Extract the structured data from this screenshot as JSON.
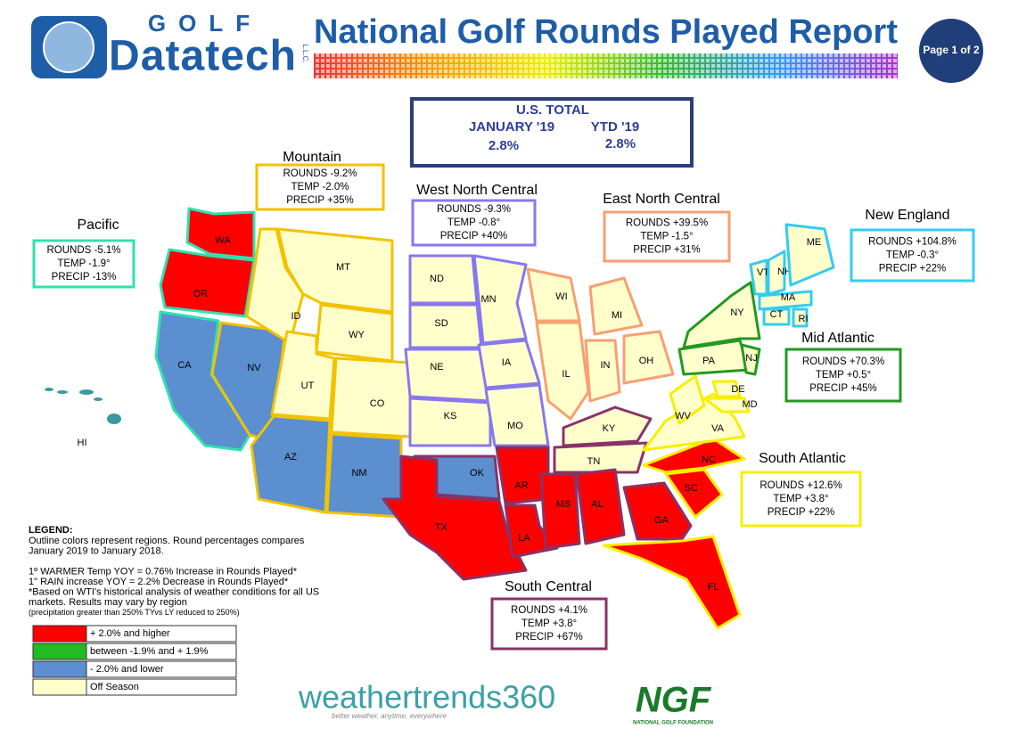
{
  "header": {
    "logo_top": "GOLF",
    "logo_main": "Datatech",
    "logo_side": "L.L.C.",
    "title": "National Golf Rounds Played Report",
    "page": "Page 1 of 2"
  },
  "total": {
    "heading": "U.S. TOTAL",
    "month_label": "JANUARY '19",
    "ytd_label": "YTD  '19",
    "month_value": "2.8%",
    "ytd_value": "2.8%"
  },
  "regions": [
    {
      "name": "Pacific",
      "lines": [
        "ROUNDS  -5.1%",
        "TEMP  -1.9°",
        "PRECIP  -13%"
      ]
    },
    {
      "name": "Mountain",
      "lines": [
        "ROUNDS  -9.2%",
        "TEMP  -2.0%",
        "PRECIP  +35%"
      ]
    },
    {
      "name": "West North Central",
      "lines": [
        "ROUNDS  -9.3%",
        "TEMP  -0.8°",
        "PRECIP  +40%"
      ]
    },
    {
      "name": "East North Central",
      "lines": [
        "ROUNDS  +39.5%",
        "TEMP  -1.5°",
        "PRECIP  +31%"
      ]
    },
    {
      "name": "New England",
      "lines": [
        "ROUNDS  +104.8%",
        "TEMP  -0.3°",
        "PRECIP  +22%"
      ]
    },
    {
      "name": "Mid Atlantic",
      "lines": [
        "ROUNDS  +70.3%",
        "TEMP  +0.5°",
        "PRECIP  +45%"
      ]
    },
    {
      "name": "South Atlantic",
      "lines": [
        "ROUNDS  +12.6%",
        "TEMP  +3.8°",
        "PRECIP  +22%"
      ]
    },
    {
      "name": "South Central",
      "lines": [
        "ROUNDS  +4.1%",
        "TEMP  +3.8°",
        "PRECIP  +67%"
      ]
    }
  ],
  "states": [
    "WA",
    "OR",
    "CA",
    "NV",
    "ID",
    "MT",
    "WY",
    "UT",
    "CO",
    "AZ",
    "NM",
    "ND",
    "SD",
    "NE",
    "KS",
    "OK",
    "TX",
    "MN",
    "IA",
    "MO",
    "AR",
    "LA",
    "WI",
    "IL",
    "MI",
    "IN",
    "OH",
    "KY",
    "TN",
    "MS",
    "AL",
    "GA",
    "FL",
    "SC",
    "NC",
    "VA",
    "WV",
    "DE",
    "MD",
    "PA",
    "NJ",
    "NY",
    "VT",
    "NH",
    "ME",
    "MA",
    "CT",
    "RI",
    "HI"
  ],
  "legend": {
    "heading": "LEGEND:",
    "notes": [
      "Outline colors represent regions. Round percentages compares",
      "January 2019 to January 2018.",
      "",
      "1º WARMER Temp YOY  = 0.76% Increase in Rounds Played*",
      "1\" RAIN increase YOY = 2.2% Decrease in Rounds Played*",
      "*Based on WTI's historical analysis of weather conditions for all US",
      "markets. Results may vary by region",
      "(precipitation greater than 250% TYvs LY reduced to 250%)"
    ],
    "items": [
      "+ 2.0% and higher",
      "between -1.9% and + 1.9%",
      "- 2.0% and lower",
      "Off Season"
    ]
  },
  "footer": {
    "wt": "weathertrends360",
    "wt_tag": "better weather, anytime, everywhere",
    "ngf": "NGF",
    "ngf_sub": "NATIONAL GOLF FOUNDATION"
  }
}
